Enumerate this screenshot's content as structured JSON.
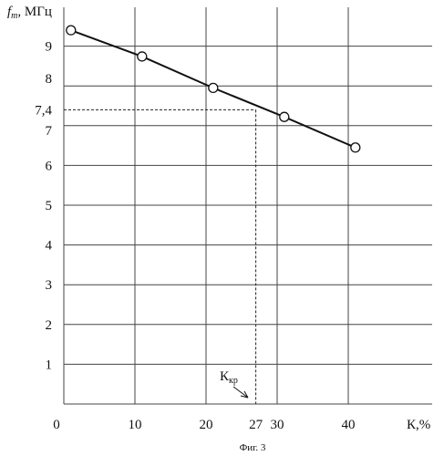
{
  "chart_data": {
    "type": "line",
    "ylabel_italic": "f",
    "ylabel_sub": "m",
    "ylabel_rest": ", МГц",
    "xlabel": "К,%",
    "caption": "Фиг. 3",
    "xlim": [
      0,
      42
    ],
    "ylim": [
      0,
      10
    ],
    "x_ticks": [
      0,
      10,
      20,
      30,
      40
    ],
    "y_ticks": [
      1,
      2,
      3,
      4,
      5,
      6,
      7,
      8,
      9
    ],
    "x_tick_labels": [
      "0",
      "10",
      "20",
      "27",
      "30",
      "40"
    ],
    "y_tick_labels": [
      "1",
      "2",
      "3",
      "4",
      "5",
      "6",
      "7",
      "7,4",
      "8",
      "9"
    ],
    "points": [
      {
        "x": 1,
        "y": 9.4
      },
      {
        "x": 11,
        "y": 8.74
      },
      {
        "x": 21,
        "y": 7.95
      },
      {
        "x": 31,
        "y": 7.22
      },
      {
        "x": 41,
        "y": 6.45
      }
    ],
    "marker": {
      "x": 27,
      "y": 7.4,
      "xlabel_main": "К",
      "xlabel_sub": "кр"
    },
    "grid": true,
    "colors": {
      "line": "#111111",
      "grid": "#444444",
      "marker_fill": "#ffffff"
    }
  }
}
